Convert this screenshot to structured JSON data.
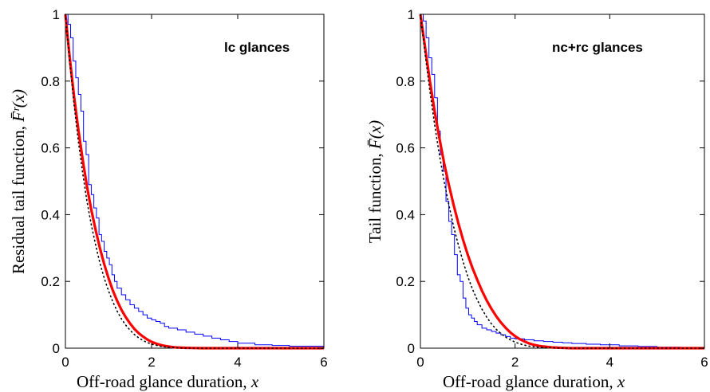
{
  "chart_data": [
    {
      "type": "line",
      "title": "lc glances",
      "xlabel": "Off-road glance duration, ",
      "xlabel_var": "x",
      "ylabel": "Residual tail function, ",
      "ylabel_func": "F̄ʳ(x)",
      "xlim": [
        0,
        6
      ],
      "ylim": [
        0,
        1
      ],
      "xticks": [
        "0",
        "2",
        "4",
        "6"
      ],
      "yticks": [
        "0",
        "0.2",
        "0.4",
        "0.6",
        "0.8",
        "1"
      ],
      "colors": {
        "empirical": "#0000ff",
        "fit": "#ff0000",
        "dotted": "#000000"
      },
      "series": [
        {
          "style": "step",
          "color": "#0000ff",
          "x": [
            0.0,
            0.06,
            0.12,
            0.18,
            0.24,
            0.3,
            0.36,
            0.42,
            0.48,
            0.54,
            0.6,
            0.66,
            0.72,
            0.78,
            0.84,
            0.9,
            0.96,
            1.02,
            1.08,
            1.14,
            1.2,
            1.3,
            1.4,
            1.5,
            1.6,
            1.7,
            1.8,
            1.9,
            2.0,
            2.1,
            2.2,
            2.3,
            2.4,
            2.6,
            2.8,
            3.0,
            3.2,
            3.4,
            3.6,
            3.8,
            4.0,
            4.4,
            4.8,
            5.2,
            6.0
          ],
          "y": [
            1.0,
            0.97,
            0.93,
            0.86,
            0.81,
            0.76,
            0.71,
            0.62,
            0.58,
            0.49,
            0.46,
            0.42,
            0.39,
            0.34,
            0.32,
            0.29,
            0.27,
            0.25,
            0.22,
            0.2,
            0.18,
            0.16,
            0.145,
            0.13,
            0.12,
            0.11,
            0.1,
            0.09,
            0.085,
            0.08,
            0.075,
            0.065,
            0.06,
            0.055,
            0.048,
            0.042,
            0.036,
            0.03,
            0.025,
            0.02,
            0.015,
            0.01,
            0.008,
            0.006,
            0.006
          ]
        },
        {
          "style": "solid-thick",
          "color": "#ff0000",
          "x": [
            0,
            0.1,
            0.2,
            0.3,
            0.4,
            0.5,
            0.6,
            0.7,
            0.8,
            0.9,
            1.0,
            1.1,
            1.2,
            1.3,
            1.4,
            1.5,
            1.6,
            1.7,
            1.8,
            1.9,
            2.0,
            2.1,
            2.2,
            2.3,
            2.4,
            2.5,
            2.6,
            2.8,
            3.0,
            3.2,
            3.5,
            4.0,
            5.0,
            6.0
          ],
          "y": [
            1.0,
            0.87,
            0.755,
            0.655,
            0.565,
            0.485,
            0.415,
            0.355,
            0.3,
            0.252,
            0.21,
            0.173,
            0.142,
            0.115,
            0.093,
            0.074,
            0.058,
            0.045,
            0.035,
            0.026,
            0.019,
            0.014,
            0.01,
            0.007,
            0.005,
            0.003,
            0.002,
            0.001,
            0.0005,
            0.0,
            0.0,
            0.0,
            0.0,
            0.0
          ]
        },
        {
          "style": "dotted",
          "color": "#000000",
          "x": [
            0,
            0.1,
            0.2,
            0.3,
            0.4,
            0.5,
            0.6,
            0.7,
            0.8,
            0.9,
            1.0,
            1.1,
            1.2,
            1.3,
            1.4,
            1.5,
            1.6,
            1.7,
            1.8,
            1.9,
            2.0,
            2.1,
            2.2,
            2.3,
            2.4,
            2.5,
            2.6,
            2.8,
            3.0,
            3.5,
            4.0,
            5.0,
            6.0
          ],
          "y": [
            1.0,
            0.855,
            0.73,
            0.62,
            0.525,
            0.44,
            0.37,
            0.31,
            0.255,
            0.21,
            0.172,
            0.139,
            0.111,
            0.088,
            0.069,
            0.054,
            0.041,
            0.031,
            0.023,
            0.017,
            0.012,
            0.009,
            0.006,
            0.004,
            0.003,
            0.002,
            0.001,
            0.0,
            0.0,
            0.0,
            0.0,
            0.0,
            0.0
          ]
        }
      ]
    },
    {
      "type": "line",
      "title": "nc+rc glances",
      "xlabel": "Off-road glance duration, ",
      "xlabel_var": "x",
      "ylabel": "Tail function, ",
      "ylabel_func": "F̄(x)",
      "xlim": [
        0,
        6
      ],
      "ylim": [
        0,
        1
      ],
      "xticks": [
        "0",
        "2",
        "4",
        "6"
      ],
      "yticks": [
        "0",
        "0.2",
        "0.4",
        "0.6",
        "0.8",
        "1"
      ],
      "colors": {
        "empirical": "#0000ff",
        "fit": "#ff0000",
        "dotted": "#000000"
      },
      "series": [
        {
          "style": "step",
          "color": "#0000ff",
          "x": [
            0.0,
            0.06,
            0.12,
            0.18,
            0.24,
            0.3,
            0.36,
            0.42,
            0.48,
            0.54,
            0.6,
            0.66,
            0.72,
            0.78,
            0.84,
            0.9,
            0.96,
            1.02,
            1.08,
            1.14,
            1.2,
            1.3,
            1.4,
            1.5,
            1.6,
            1.7,
            1.8,
            1.9,
            2.0,
            2.2,
            2.4,
            2.6,
            2.8,
            3.0,
            3.2,
            3.5,
            3.8,
            4.2,
            4.6,
            5.0,
            5.5,
            6.0
          ],
          "y": [
            1.0,
            0.98,
            0.93,
            0.87,
            0.82,
            0.75,
            0.65,
            0.58,
            0.53,
            0.44,
            0.38,
            0.34,
            0.28,
            0.22,
            0.2,
            0.15,
            0.12,
            0.1,
            0.09,
            0.08,
            0.07,
            0.06,
            0.055,
            0.05,
            0.045,
            0.04,
            0.035,
            0.03,
            0.028,
            0.025,
            0.022,
            0.02,
            0.018,
            0.016,
            0.014,
            0.012,
            0.01,
            0.007,
            0.005,
            0.003,
            0.001,
            0.0
          ]
        },
        {
          "style": "solid-thick",
          "color": "#ff0000",
          "x": [
            0,
            0.1,
            0.2,
            0.3,
            0.4,
            0.5,
            0.6,
            0.7,
            0.8,
            0.9,
            1.0,
            1.1,
            1.2,
            1.3,
            1.4,
            1.5,
            1.6,
            1.7,
            1.8,
            1.9,
            2.0,
            2.1,
            2.2,
            2.3,
            2.4,
            2.5,
            2.6,
            2.8,
            3.0,
            3.2,
            3.5,
            4.0,
            5.0,
            6.0
          ],
          "y": [
            1.0,
            0.9,
            0.8,
            0.71,
            0.63,
            0.555,
            0.49,
            0.43,
            0.375,
            0.325,
            0.28,
            0.24,
            0.205,
            0.172,
            0.143,
            0.118,
            0.096,
            0.077,
            0.061,
            0.047,
            0.036,
            0.027,
            0.02,
            0.014,
            0.01,
            0.007,
            0.005,
            0.002,
            0.001,
            0.0,
            0.0,
            0.0,
            0.0,
            0.0
          ]
        },
        {
          "style": "dotted",
          "color": "#000000",
          "x": [
            0,
            0.1,
            0.2,
            0.3,
            0.4,
            0.5,
            0.6,
            0.7,
            0.8,
            0.9,
            1.0,
            1.1,
            1.2,
            1.3,
            1.4,
            1.5,
            1.6,
            1.7,
            1.8,
            1.9,
            2.0,
            2.1,
            2.2,
            2.3,
            2.4,
            2.5,
            2.6,
            2.8,
            3.0,
            3.5,
            4.0,
            5.0,
            6.0
          ],
          "y": [
            1.0,
            0.88,
            0.77,
            0.67,
            0.58,
            0.5,
            0.43,
            0.365,
            0.31,
            0.26,
            0.215,
            0.177,
            0.145,
            0.117,
            0.093,
            0.073,
            0.057,
            0.044,
            0.033,
            0.025,
            0.018,
            0.013,
            0.009,
            0.006,
            0.004,
            0.003,
            0.002,
            0.001,
            0.0,
            0.0,
            0.0,
            0.0,
            0.0
          ]
        }
      ]
    }
  ]
}
